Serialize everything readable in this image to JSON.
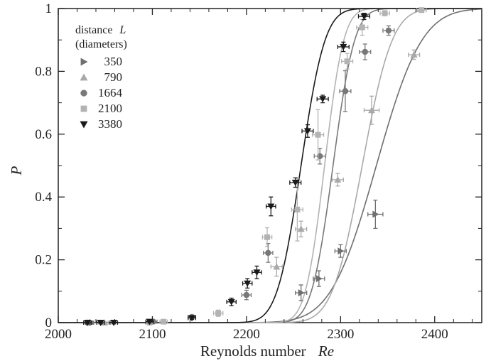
{
  "chart_data": {
    "type": "scatter",
    "xlabel": "Reynolds number",
    "xlabel_var": "Re",
    "ylabel": "P",
    "xlim": [
      2000,
      2450
    ],
    "ylim": [
      0,
      1
    ],
    "x_ticks": [
      2000,
      2100,
      2200,
      2300,
      2400
    ],
    "y_ticks": [
      0,
      0.2,
      0.4,
      0.6,
      0.8,
      1
    ],
    "x_tick_labels": [
      "2000",
      "2100",
      "2200",
      "2300",
      "2400"
    ],
    "y_tick_labels": [
      "0",
      "0.2",
      "0.4",
      "0.6",
      "0.8",
      "1"
    ],
    "grid": false,
    "legend": {
      "title_line1": "distance",
      "title_var": "L",
      "title_line2": "(diameters)",
      "position": "top-left"
    },
    "series": [
      {
        "name": "350",
        "marker": "triangle-right",
        "color": "#6f6f6f",
        "fit": {
          "center": 2338,
          "width": 38
        },
        "points": [
          {
            "x": 2036,
            "y": 0.0,
            "xerr": 5,
            "yerr": 0.005
          },
          {
            "x": 2258,
            "y": 0.095,
            "xerr": 6,
            "yerr": 0.025
          },
          {
            "x": 2277,
            "y": 0.14,
            "xerr": 6,
            "yerr": 0.025
          },
          {
            "x": 2300,
            "y": 0.228,
            "xerr": 6,
            "yerr": 0.02
          },
          {
            "x": 2337,
            "y": 0.345,
            "xerr": 8,
            "yerr": 0.045
          }
        ]
      },
      {
        "name": "790",
        "marker": "triangle-up",
        "color": "#a9a9a9",
        "fit": {
          "center": 2323,
          "width": 25
        },
        "points": [
          {
            "x": 2049,
            "y": 0.0,
            "xerr": 4,
            "yerr": 0.004
          },
          {
            "x": 2232,
            "y": 0.178,
            "xerr": 6,
            "yerr": 0.03
          },
          {
            "x": 2258,
            "y": 0.298,
            "xerr": 6,
            "yerr": 0.025
          },
          {
            "x": 2297,
            "y": 0.455,
            "xerr": 6,
            "yerr": 0.02
          },
          {
            "x": 2333,
            "y": 0.676,
            "xerr": 8,
            "yerr": 0.045
          },
          {
            "x": 2378,
            "y": 0.853,
            "xerr": 6,
            "yerr": 0.015
          }
        ]
      },
      {
        "name": "1664",
        "marker": "circle",
        "color": "#787878",
        "fit": {
          "center": 2292,
          "width": 18
        },
        "points": [
          {
            "x": 2031,
            "y": 0.0,
            "xerr": 4,
            "yerr": 0.004
          },
          {
            "x": 2101,
            "y": 0.003,
            "xerr": 4,
            "yerr": 0.004
          },
          {
            "x": 2142,
            "y": 0.018,
            "xerr": 4,
            "yerr": 0.005
          },
          {
            "x": 2200,
            "y": 0.088,
            "xerr": 5,
            "yerr": 0.015
          },
          {
            "x": 2223,
            "y": 0.222,
            "xerr": 5,
            "yerr": 0.03
          },
          {
            "x": 2278,
            "y": 0.53,
            "xerr": 6,
            "yerr": 0.025
          },
          {
            "x": 2305,
            "y": 0.737,
            "xerr": 6,
            "yerr": 0.065
          },
          {
            "x": 2326,
            "y": 0.862,
            "xerr": 6,
            "yerr": 0.025
          },
          {
            "x": 2351,
            "y": 0.93,
            "xerr": 6,
            "yerr": 0.015
          }
        ]
      },
      {
        "name": "2100",
        "marker": "square",
        "color": "#b3b3b3",
        "fit": {
          "center": 2283,
          "width": 16
        },
        "points": [
          {
            "x": 2097,
            "y": 0.0,
            "xerr": 4,
            "yerr": 0.004
          },
          {
            "x": 2112,
            "y": 0.003,
            "xerr": 4,
            "yerr": 0.004
          },
          {
            "x": 2170,
            "y": 0.03,
            "xerr": 5,
            "yerr": 0.01
          },
          {
            "x": 2222,
            "y": 0.272,
            "xerr": 5,
            "yerr": 0.03
          },
          {
            "x": 2254,
            "y": 0.36,
            "xerr": 6,
            "yerr": 0.1
          },
          {
            "x": 2276,
            "y": 0.598,
            "xerr": 6,
            "yerr": 0.08
          },
          {
            "x": 2307,
            "y": 0.832,
            "xerr": 6,
            "yerr": 0.025
          },
          {
            "x": 2323,
            "y": 0.94,
            "xerr": 6,
            "yerr": 0.025
          },
          {
            "x": 2347,
            "y": 0.985,
            "xerr": 5,
            "yerr": 0.008
          },
          {
            "x": 2386,
            "y": 0.995,
            "xerr": 5,
            "yerr": 0.005
          }
        ]
      },
      {
        "name": "3380",
        "marker": "triangle-down",
        "color": "#1a1a1a",
        "fit": {
          "center": 2258,
          "width": 20
        },
        "points": [
          {
            "x": 2031,
            "y": 0.0,
            "xerr": 4,
            "yerr": 0.004
          },
          {
            "x": 2045,
            "y": 0.0,
            "xerr": 4,
            "yerr": 0.004
          },
          {
            "x": 2059,
            "y": 0.0,
            "xerr": 4,
            "yerr": 0.004
          },
          {
            "x": 2097,
            "y": 0.003,
            "xerr": 4,
            "yerr": 0.004
          },
          {
            "x": 2142,
            "y": 0.015,
            "xerr": 4,
            "yerr": 0.005
          },
          {
            "x": 2184,
            "y": 0.066,
            "xerr": 5,
            "yerr": 0.012
          },
          {
            "x": 2201,
            "y": 0.125,
            "xerr": 5,
            "yerr": 0.015
          },
          {
            "x": 2211,
            "y": 0.16,
            "xerr": 5,
            "yerr": 0.02
          },
          {
            "x": 2226,
            "y": 0.37,
            "xerr": 5,
            "yerr": 0.03
          },
          {
            "x": 2252,
            "y": 0.446,
            "xerr": 6,
            "yerr": 0.015
          },
          {
            "x": 2265,
            "y": 0.61,
            "xerr": 6,
            "yerr": 0.02
          },
          {
            "x": 2281,
            "y": 0.712,
            "xerr": 6,
            "yerr": 0.012
          },
          {
            "x": 2303,
            "y": 0.878,
            "xerr": 6,
            "yerr": 0.015
          },
          {
            "x": 2325,
            "y": 0.975,
            "xerr": 6,
            "yerr": 0.01
          }
        ]
      }
    ]
  }
}
